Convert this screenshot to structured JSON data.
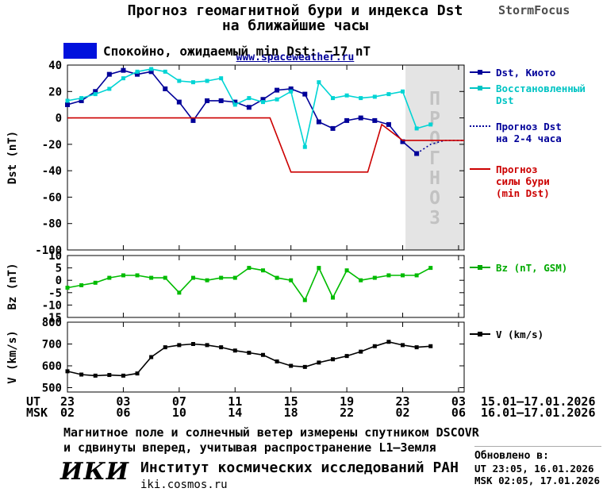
{
  "header": {
    "title_line1": "Прогноз геомагнитной бури и индекса Dst",
    "title_line2": "на ближайшие часы",
    "website": "www.spaceweather.ru",
    "brand": "StormFocus",
    "status_label": "Спокойно, ожидаемый min Dst: −17 nT",
    "status_color": "#0011dd"
  },
  "chart_data": {
    "type": "line",
    "x_axis": {
      "ut_label": "UT",
      "msk_label": "MSK",
      "hours_domain": [
        0,
        28.4
      ],
      "tick_hours": [
        0,
        4,
        8,
        12,
        16,
        20,
        24,
        28
      ],
      "ut_ticks": [
        "23",
        "03",
        "07",
        "11",
        "15",
        "19",
        "23",
        "03"
      ],
      "msk_ticks": [
        "02",
        "06",
        "10",
        "14",
        "18",
        "22",
        "02",
        "06"
      ],
      "ut_date_range": "15.01–17.01.2026",
      "msk_date_range": "16.01–17.01.2026"
    },
    "panels": {
      "dst": {
        "ylabel": "Dst (nT)",
        "ylim": [
          -100,
          40
        ],
        "yticks": [
          40,
          20,
          0,
          -20,
          -40,
          -60,
          -80,
          -100
        ],
        "forecast_region_start_hour": 24.2,
        "forecast_region_color": "#e4e4e4",
        "forecast_region_label": "ПРОГНОЗ"
      },
      "bz": {
        "ylabel": "Bz (nT)",
        "ylim": [
          -15,
          10
        ],
        "yticks": [
          10,
          5,
          0,
          -5,
          -10,
          -15
        ]
      },
      "v": {
        "ylabel": "V (km/s)",
        "ylim": [
          480,
          800
        ],
        "yticks": [
          800,
          700,
          600,
          500
        ]
      }
    },
    "series": [
      {
        "id": "dst-kyoto",
        "panel": "dst",
        "name": "Dst, Киото",
        "color": "#000099",
        "style": "solid",
        "markers": true,
        "marker_size": 6,
        "x": [
          0,
          1,
          2,
          3,
          4,
          5,
          6,
          7,
          8,
          9,
          10,
          11,
          12,
          13,
          14,
          15,
          16,
          17,
          18,
          19,
          20,
          21,
          22,
          23,
          24,
          25
        ],
        "y": [
          10,
          13,
          20,
          33,
          36,
          33,
          35,
          22,
          12,
          -2,
          13,
          13,
          12,
          8,
          14,
          21,
          22,
          18,
          -3,
          -8,
          -2,
          0,
          -2,
          -5,
          -18,
          -27
        ]
      },
      {
        "id": "dst-restored",
        "panel": "dst",
        "name": "Восстановленный Dst",
        "color": "#00d4d4",
        "style": "solid",
        "markers": true,
        "marker_size": 5,
        "x": [
          0,
          1,
          2,
          3,
          4,
          5,
          6,
          7,
          8,
          9,
          10,
          11,
          12,
          13,
          14,
          15,
          16,
          17,
          18,
          19,
          20,
          21,
          22,
          23,
          24,
          25,
          26
        ],
        "y": [
          13,
          15,
          18,
          22,
          30,
          35,
          37,
          35,
          28,
          27,
          28,
          30,
          10,
          15,
          12,
          14,
          20,
          -22,
          27,
          15,
          17,
          15,
          16,
          18,
          20,
          -8,
          -5
        ]
      },
      {
        "id": "dst-forecast",
        "panel": "dst",
        "name": "Прогноз Dst на 2-4 часа",
        "color": "#000099",
        "style": "dotted",
        "markers": false,
        "x": [
          25,
          26,
          27,
          28.4
        ],
        "y": [
          -27,
          -20,
          -17,
          -17
        ]
      },
      {
        "id": "storm-forecast",
        "panel": "dst",
        "name": "Прогноз силы бури (min Dst)",
        "color": "#cc0000",
        "style": "solid",
        "markers": false,
        "x": [
          0,
          14.5,
          16,
          21.5,
          22.5,
          24,
          28.4
        ],
        "y": [
          0,
          0,
          -41,
          -41,
          -5,
          -17,
          -17
        ]
      },
      {
        "id": "bz",
        "panel": "bz",
        "name": "Bz (nT, GSM)",
        "color": "#00bb00",
        "style": "solid",
        "markers": true,
        "marker_size": 5,
        "x": [
          0,
          1,
          2,
          3,
          4,
          5,
          6,
          7,
          8,
          9,
          10,
          11,
          12,
          13,
          14,
          15,
          16,
          17,
          18,
          19,
          20,
          21,
          22,
          23,
          24,
          25,
          26
        ],
        "y": [
          -3,
          -2,
          -1,
          1,
          2,
          2,
          1,
          1,
          -5,
          1,
          0,
          1,
          1,
          5,
          4,
          1,
          0,
          -8,
          5,
          -7,
          4,
          0,
          1,
          2,
          2,
          2,
          5
        ]
      },
      {
        "id": "v",
        "panel": "v",
        "name": "V (km/s)",
        "color": "#000000",
        "style": "solid",
        "markers": true,
        "marker_size": 5,
        "x": [
          0,
          1,
          2,
          3,
          4,
          5,
          6,
          7,
          8,
          9,
          10,
          11,
          12,
          13,
          14,
          15,
          16,
          17,
          18,
          19,
          20,
          21,
          22,
          23,
          24,
          25,
          26
        ],
        "y": [
          575,
          560,
          555,
          558,
          555,
          565,
          640,
          685,
          695,
          700,
          695,
          685,
          670,
          660,
          650,
          620,
          600,
          595,
          615,
          630,
          645,
          665,
          690,
          710,
          695,
          685,
          690
        ]
      }
    ]
  },
  "legend": {
    "items": [
      {
        "label": "Dst, Киото",
        "color": "#000099",
        "style": "solid_square"
      },
      {
        "label": "Восстановленный\nDst",
        "color": "#00c4c4",
        "style": "solid_square"
      },
      {
        "label": "Прогноз Dst\nна 2-4 часа",
        "color": "#000099",
        "style": "dotted"
      },
      {
        "label": "Прогноз\nсилы бури\n(min Dst)",
        "color": "#cc0000",
        "style": "solid"
      },
      {
        "label": "Bz (nT, GSM)",
        "color": "#00aa00",
        "style": "solid_square"
      },
      {
        "label": "V (km/s)",
        "color": "#000000",
        "style": "solid_square"
      }
    ]
  },
  "footer": {
    "note_line1": "Магнитное поле и солнечный ветер измерены спутником DSCOVR",
    "note_line2": "и сдвинуты вперед, учитывая распространение L1–Земля",
    "logo": "ИКИ",
    "institute": "Институт космических исследований РАН",
    "institute_site": "iki.cosmos.ru",
    "updated_label": "Обновлено в:",
    "updated_ut": "UT  23:05, 16.01.2026",
    "updated_msk": "MSK 02:05, 17.01.2026"
  }
}
